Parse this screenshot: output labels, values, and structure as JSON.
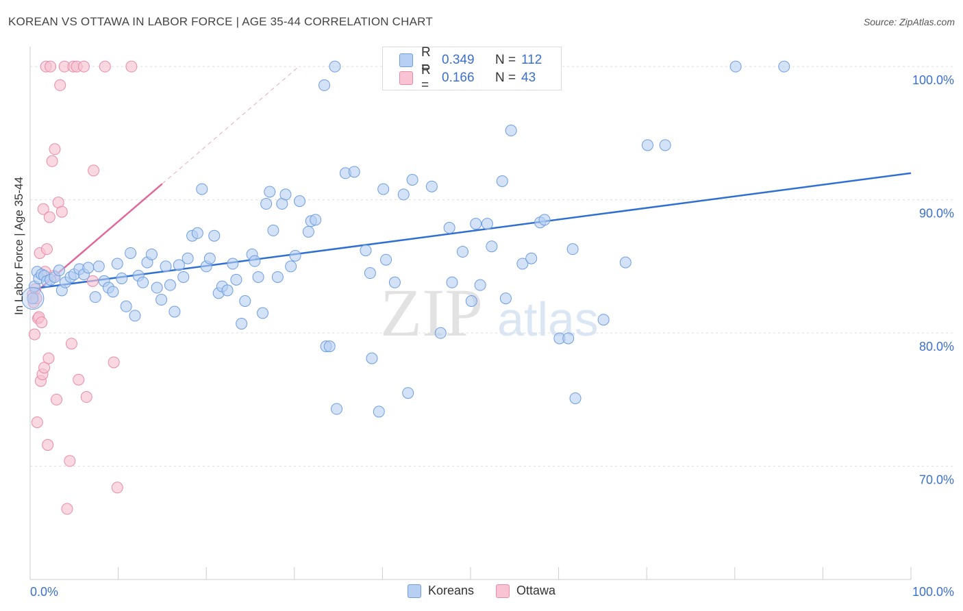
{
  "title": "KOREAN VS OTTAWA IN LABOR FORCE | AGE 35-44 CORRELATION CHART",
  "source": "Source: ZipAtlas.com",
  "watermark": {
    "zip": "ZIP",
    "atlas": "atlas"
  },
  "legend": {
    "rows": [
      {
        "r_label": "R =",
        "r_value": "0.349",
        "n_label": "N =",
        "n_value": "112"
      },
      {
        "r_label": "R =",
        "r_value": "0.166",
        "n_label": "N =",
        "n_value": "43"
      }
    ],
    "bottom": [
      "Koreans",
      "Ottawa"
    ]
  },
  "colors": {
    "koreans_fill": "#b6cff2",
    "koreans_stroke": "#6d9de0",
    "koreans_line": "#2e6fd1",
    "ottawa_fill": "#f8c3d3",
    "ottawa_stroke": "#e98aa8",
    "ottawa_line": "#e0679a",
    "grid": "#dddddd",
    "tick_text": "#3a6fd0"
  },
  "chart_data": {
    "type": "scatter",
    "title": "KOREAN VS OTTAWA IN LABOR FORCE | AGE 35-44 CORRELATION CHART",
    "xlabel": "",
    "ylabel": "In Labor Force | Age 35-44",
    "xlim": [
      0,
      100
    ],
    "ylim": [
      61.5,
      101.5
    ],
    "x_tick_labels": [
      "0.0%",
      "100.0%"
    ],
    "y_ticks": [
      70,
      80,
      90,
      100
    ],
    "y_tick_labels": [
      "70.0%",
      "80.0%",
      "90.0%",
      "100.0%"
    ],
    "series": [
      {
        "name": "Koreans",
        "r": 0.349,
        "n": 112,
        "trend": {
          "x": [
            0,
            100
          ],
          "y": [
            83.3,
            92.0
          ]
        },
        "points": [
          [
            0.3,
            82.6
          ],
          [
            0.5,
            83.5
          ],
          [
            0.8,
            84.6
          ],
          [
            1.0,
            84.1
          ],
          [
            1.3,
            84.4
          ],
          [
            1.6,
            84.3
          ],
          [
            1.9,
            83.9
          ],
          [
            2.3,
            84.0
          ],
          [
            2.8,
            84.2
          ],
          [
            3.3,
            84.7
          ],
          [
            3.6,
            83.2
          ],
          [
            4.0,
            83.8
          ],
          [
            4.6,
            84.2
          ],
          [
            5.0,
            84.4
          ],
          [
            5.6,
            84.8
          ],
          [
            6.1,
            84.4
          ],
          [
            6.6,
            84.9
          ],
          [
            7.4,
            82.7
          ],
          [
            7.8,
            85.0
          ],
          [
            8.4,
            83.9
          ],
          [
            8.9,
            83.4
          ],
          [
            9.4,
            83.1
          ],
          [
            9.9,
            85.2
          ],
          [
            10.4,
            84.1
          ],
          [
            10.9,
            82.0
          ],
          [
            11.4,
            86.0
          ],
          [
            11.9,
            81.3
          ],
          [
            12.3,
            84.3
          ],
          [
            12.8,
            83.8
          ],
          [
            13.3,
            85.3
          ],
          [
            13.8,
            85.9
          ],
          [
            14.4,
            83.4
          ],
          [
            14.9,
            82.5
          ],
          [
            15.4,
            85.0
          ],
          [
            15.9,
            83.6
          ],
          [
            16.4,
            81.6
          ],
          [
            16.9,
            85.1
          ],
          [
            17.4,
            84.2
          ],
          [
            17.9,
            85.6
          ],
          [
            18.4,
            87.3
          ],
          [
            19.0,
            87.5
          ],
          [
            19.5,
            90.8
          ],
          [
            20.0,
            85.0
          ],
          [
            20.4,
            85.6
          ],
          [
            20.9,
            87.3
          ],
          [
            21.4,
            83.0
          ],
          [
            21.8,
            83.5
          ],
          [
            22.4,
            83.2
          ],
          [
            23.0,
            85.2
          ],
          [
            23.4,
            84.0
          ],
          [
            24.0,
            80.7
          ],
          [
            24.4,
            82.4
          ],
          [
            25.2,
            85.9
          ],
          [
            25.5,
            85.4
          ],
          [
            25.9,
            84.2
          ],
          [
            26.4,
            81.5
          ],
          [
            26.8,
            89.7
          ],
          [
            27.2,
            90.6
          ],
          [
            27.6,
            87.7
          ],
          [
            28.1,
            84.2
          ],
          [
            28.6,
            89.7
          ],
          [
            29.0,
            90.4
          ],
          [
            29.6,
            85.0
          ],
          [
            30.1,
            85.8
          ],
          [
            30.6,
            89.9
          ],
          [
            31.6,
            87.6
          ],
          [
            31.9,
            88.4
          ],
          [
            32.4,
            88.5
          ],
          [
            33.4,
            98.6
          ],
          [
            33.6,
            79.0
          ],
          [
            34.0,
            79.0
          ],
          [
            34.6,
            100.0
          ],
          [
            34.8,
            74.3
          ],
          [
            35.8,
            92.0
          ],
          [
            36.8,
            92.1
          ],
          [
            38.1,
            86.2
          ],
          [
            38.6,
            84.5
          ],
          [
            38.8,
            78.1
          ],
          [
            39.6,
            74.1
          ],
          [
            40.1,
            90.8
          ],
          [
            40.4,
            85.5
          ],
          [
            41.4,
            83.8
          ],
          [
            42.4,
            90.4
          ],
          [
            42.9,
            75.5
          ],
          [
            43.4,
            91.5
          ],
          [
            45.6,
            91.0
          ],
          [
            46.6,
            80.0
          ],
          [
            47.6,
            87.9
          ],
          [
            47.9,
            83.8
          ],
          [
            49.1,
            86.1
          ],
          [
            50.1,
            82.4
          ],
          [
            50.6,
            88.2
          ],
          [
            51.1,
            83.6
          ],
          [
            51.9,
            88.2
          ],
          [
            52.4,
            86.5
          ],
          [
            53.6,
            91.4
          ],
          [
            54.0,
            82.6
          ],
          [
            54.6,
            95.2
          ],
          [
            55.9,
            85.2
          ],
          [
            56.9,
            85.6
          ],
          [
            57.9,
            88.3
          ],
          [
            58.4,
            88.5
          ],
          [
            60.1,
            79.6
          ],
          [
            61.1,
            79.6
          ],
          [
            61.6,
            86.3
          ],
          [
            61.9,
            75.1
          ],
          [
            65.1,
            81.0
          ],
          [
            67.6,
            85.3
          ],
          [
            70.1,
            94.1
          ],
          [
            72.1,
            94.1
          ],
          [
            80.1,
            100.0
          ],
          [
            85.6,
            100.0
          ]
        ]
      },
      {
        "name": "Ottawa",
        "r": 0.166,
        "n": 43,
        "trend": {
          "x": [
            0,
            15
          ],
          "y": [
            82.7,
            91.2
          ]
        },
        "trend_extension": {
          "x": [
            15,
            30.5
          ],
          "y": [
            91.2,
            100.0
          ]
        },
        "points": [
          [
            0.3,
            82.9
          ],
          [
            0.4,
            82.3
          ],
          [
            0.5,
            79.9
          ],
          [
            0.6,
            83.3
          ],
          [
            0.7,
            82.6
          ],
          [
            0.8,
            73.3
          ],
          [
            0.9,
            81.1
          ],
          [
            1.0,
            81.2
          ],
          [
            1.1,
            86.0
          ],
          [
            1.2,
            76.4
          ],
          [
            1.3,
            80.8
          ],
          [
            1.4,
            76.9
          ],
          [
            1.5,
            89.3
          ],
          [
            1.6,
            77.4
          ],
          [
            1.7,
            84.6
          ],
          [
            1.8,
            100.0
          ],
          [
            1.9,
            86.3
          ],
          [
            2.0,
            71.6
          ],
          [
            2.1,
            78.1
          ],
          [
            2.2,
            88.7
          ],
          [
            2.3,
            100.0
          ],
          [
            2.5,
            92.9
          ],
          [
            2.7,
            84.3
          ],
          [
            2.8,
            93.8
          ],
          [
            3.0,
            75.0
          ],
          [
            3.2,
            89.8
          ],
          [
            3.4,
            98.6
          ],
          [
            3.6,
            89.1
          ],
          [
            3.9,
            100.0
          ],
          [
            4.2,
            66.8
          ],
          [
            4.5,
            70.4
          ],
          [
            4.7,
            79.2
          ],
          [
            4.9,
            100.0
          ],
          [
            5.3,
            100.0
          ],
          [
            5.5,
            76.5
          ],
          [
            6.1,
            100.0
          ],
          [
            6.4,
            75.2
          ],
          [
            7.1,
            83.9
          ],
          [
            7.2,
            92.2
          ],
          [
            8.5,
            100.0
          ],
          [
            9.5,
            77.8
          ],
          [
            9.9,
            68.4
          ],
          [
            11.5,
            100.0
          ]
        ]
      }
    ]
  }
}
